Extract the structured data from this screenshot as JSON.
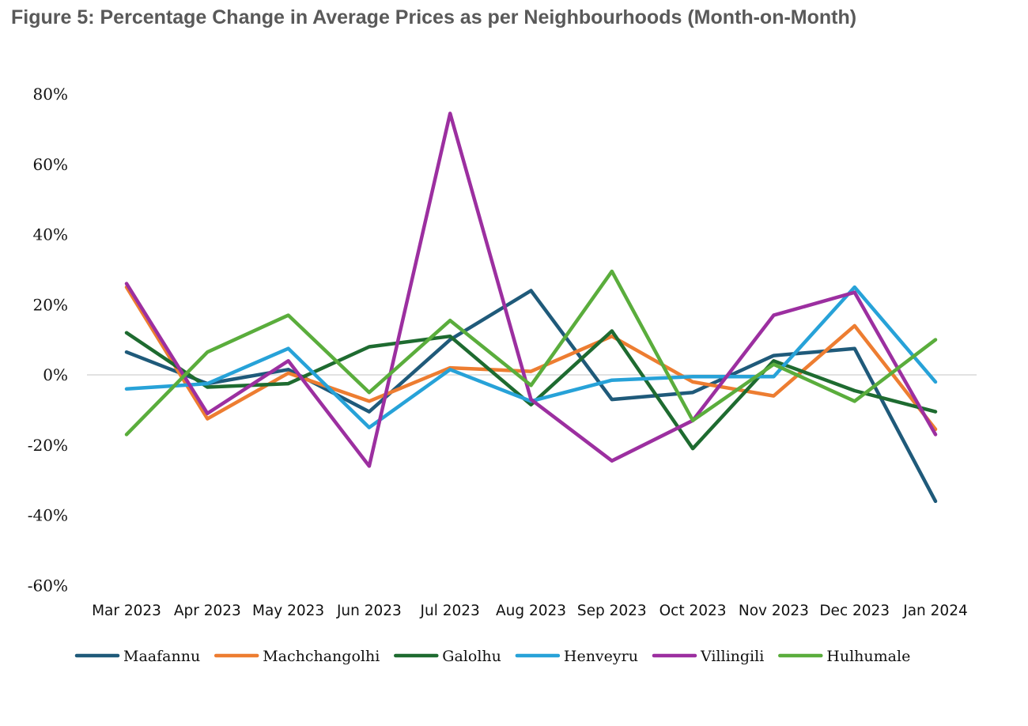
{
  "title": "Figure 5: Percentage Change in Average Prices as per Neighbourhoods (Month-on-Month)",
  "chart_data": {
    "type": "line",
    "title": "Figure 5: Percentage Change in Average Prices as per Neighbourhoods (Month-on-Month)",
    "xlabel": "",
    "ylabel": "",
    "ylim": [
      -60,
      80
    ],
    "yticks": [
      80,
      60,
      40,
      20,
      0,
      -20,
      -40,
      -60
    ],
    "ytick_labels": [
      "80%",
      "60%",
      "40%",
      "20%",
      "0%",
      "-20%",
      "-40%",
      "-60%"
    ],
    "categories": [
      "Mar 2023",
      "Apr 2023",
      "May 2023",
      "Jun 2023",
      "Jul 2023",
      "Aug 2023",
      "Sep 2023",
      "Oct 2023",
      "Nov 2023",
      "Dec 2023",
      "Jan 2024"
    ],
    "grid": "zero line only",
    "legend": "bottom",
    "series": [
      {
        "name": "Maafannu",
        "color": "#1f5a7a",
        "values": [
          6.5,
          -2.5,
          1.5,
          -10.5,
          10,
          24,
          -7,
          -5,
          5.5,
          7.5,
          -36
        ]
      },
      {
        "name": "Machchangolhi",
        "color": "#ed7d31",
        "values": [
          25,
          -12.5,
          0.5,
          -7.5,
          2,
          1,
          11,
          -2,
          -6,
          14,
          -15.5
        ]
      },
      {
        "name": "Galolhu",
        "color": "#1e6b30",
        "values": [
          12,
          -3.5,
          -2.5,
          8,
          11,
          -8.5,
          12.5,
          -21,
          4,
          -4.5,
          -10.5
        ]
      },
      {
        "name": "Henveyru",
        "color": "#27a2d8",
        "values": [
          -4,
          -2.5,
          7.5,
          -15,
          1.5,
          -7.5,
          -1.5,
          -0.5,
          -0.5,
          25,
          -2
        ]
      },
      {
        "name": "Villingili",
        "color": "#9c2fa0",
        "values": [
          26,
          -11,
          4,
          -26,
          74.5,
          -7,
          -24.5,
          -13,
          17,
          23.5,
          -17
        ]
      },
      {
        "name": "Hulhumale",
        "color": "#5aad3c",
        "values": [
          -17,
          6.5,
          17,
          -5,
          15.5,
          -3,
          29.5,
          -13,
          3,
          -7.5,
          10
        ]
      }
    ]
  }
}
